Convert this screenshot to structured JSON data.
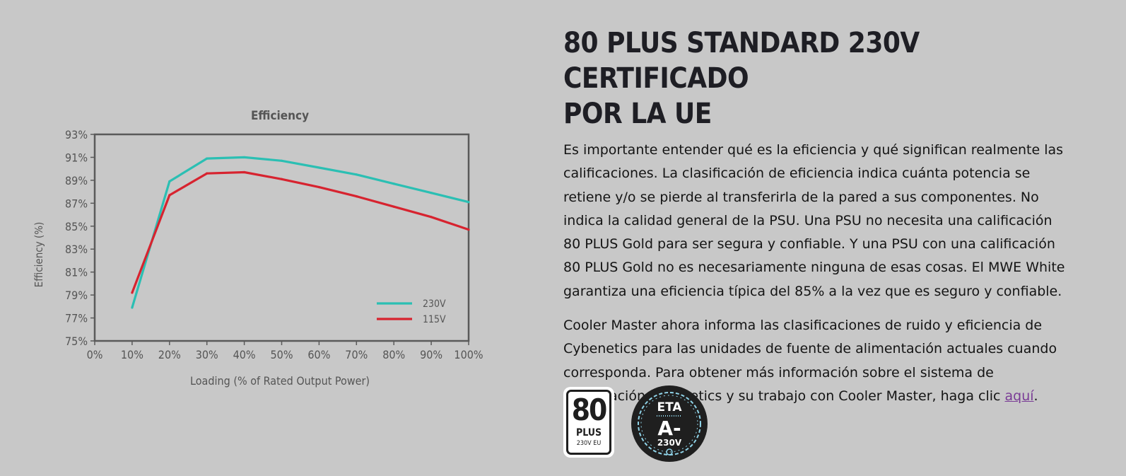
{
  "heading": {
    "line1": "80 PLUS STANDARD 230V CERTIFICADO",
    "line2": "POR LA UE"
  },
  "paragraph1": "Es importante entender qué es la eficiencia y qué significan realmente las calificaciones. La clasificación de eficiencia indica cuánta potencia se retiene y/o se pierde al transferirla de la pared a sus componentes. No indica la calidad general de la PSU. Una PSU no necesita una calificación 80 PLUS Gold para ser segura y confiable. Y una PSU con una calificación 80 PLUS Gold no es necesariamente ninguna de esas cosas. El MWE White garantiza una eficiencia típica del 85% a la vez que es seguro y confiable.",
  "paragraph2": {
    "text": "Cooler Master ahora informa las clasificaciones de ruido y eficiencia de Cybenetics para las unidades de fuente de alimentación actuales cuando corresponda. Para obtener más información sobre el sistema de clasificación cybenetics y su trabajo con Cooler Master, haga clic ",
    "link_label": "aquí",
    "trailing": "."
  },
  "badges": {
    "plus80": {
      "number": "80",
      "plus": "PLUS",
      "sub": "230V EU"
    },
    "eta": {
      "top": "ETA",
      "grade": "A-",
      "voltage": "230V"
    }
  },
  "chart_data": {
    "type": "line",
    "title": "Efficiency",
    "xlabel": "Loading (% of Rated Output Power)",
    "ylabel": "Efficiency (%)",
    "x": [
      0,
      10,
      20,
      30,
      40,
      50,
      60,
      70,
      80,
      90,
      100
    ],
    "x_tick_labels": [
      "0%",
      "10%",
      "20%",
      "30%",
      "40%",
      "50%",
      "60%",
      "70%",
      "80%",
      "90%",
      "100%"
    ],
    "y_ticks": [
      75,
      77,
      79,
      81,
      83,
      85,
      87,
      89,
      91,
      93
    ],
    "y_tick_labels": [
      "75%",
      "77%",
      "79%",
      "81%",
      "83%",
      "85%",
      "87%",
      "89%",
      "91%",
      "93%"
    ],
    "xlim": [
      0,
      100
    ],
    "ylim": [
      75,
      93
    ],
    "grid": false,
    "legend_position": "bottom-right",
    "series": [
      {
        "name": "230V",
        "color": "#2bbfb3",
        "x": [
          10,
          20,
          30,
          40,
          50,
          60,
          70,
          80,
          90,
          100
        ],
        "values": [
          77.9,
          88.9,
          90.9,
          91.0,
          90.7,
          90.1,
          89.5,
          88.7,
          87.9,
          87.1
        ]
      },
      {
        "name": "115V",
        "color": "#d7232f",
        "x": [
          10,
          20,
          30,
          40,
          50,
          60,
          70,
          80,
          90,
          100
        ],
        "values": [
          79.2,
          87.7,
          89.6,
          89.7,
          89.1,
          88.4,
          87.6,
          86.7,
          85.8,
          84.7
        ]
      }
    ]
  }
}
